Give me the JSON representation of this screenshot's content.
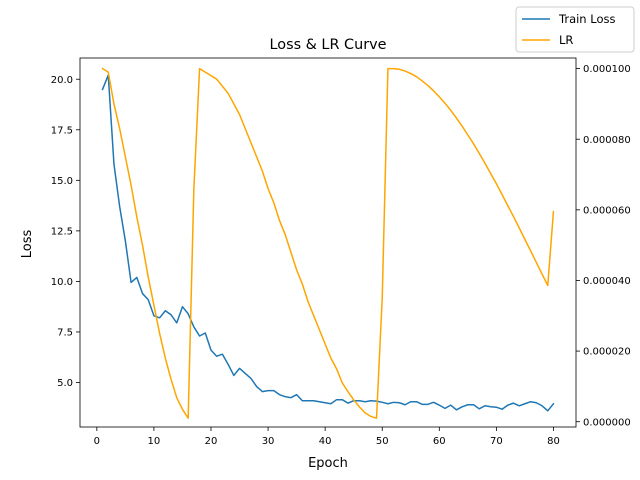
{
  "chart_data": {
    "type": "line",
    "title": "Loss & LR Curve",
    "xlabel": "Epoch",
    "ylabel": "Loss",
    "y2label": "",
    "xlim": [
      -2.95,
      83.95
    ],
    "ylim": [
      2.8,
      21.05
    ],
    "y2lim": [
      -1.5e-06,
      0.000103
    ],
    "x_ticks": [
      0,
      10,
      20,
      30,
      40,
      50,
      60,
      70,
      80
    ],
    "y_ticks": [
      5.0,
      7.5,
      10.0,
      12.5,
      15.0,
      17.5,
      20.0
    ],
    "y_tick_labels": [
      "5.0",
      "7.5",
      "10.0",
      "12.5",
      "15.0",
      "17.5",
      "20.0"
    ],
    "y2_ticks": [
      0.0,
      2e-05,
      4e-05,
      6e-05,
      8e-05,
      0.0001
    ],
    "y2_tick_labels": [
      "0.000000",
      "0.000020",
      "0.000040",
      "0.000060",
      "0.000080",
      "0.000100"
    ],
    "legend_position": "top-right",
    "grid": false,
    "x": [
      1,
      2,
      3,
      4,
      5,
      6,
      7,
      8,
      9,
      10,
      11,
      12,
      13,
      14,
      15,
      16,
      17,
      18,
      19,
      20,
      21,
      22,
      23,
      24,
      25,
      26,
      27,
      28,
      29,
      30,
      31,
      32,
      33,
      34,
      35,
      36,
      37,
      38,
      39,
      40,
      41,
      42,
      43,
      44,
      45,
      46,
      47,
      48,
      49,
      50,
      51,
      52,
      53,
      54,
      55,
      56,
      57,
      58,
      59,
      60,
      61,
      62,
      63,
      64,
      65,
      66,
      67,
      68,
      69,
      70,
      71,
      72,
      73,
      74,
      75,
      76,
      77,
      78,
      79,
      80
    ],
    "series": [
      {
        "name": "Train Loss",
        "axis": "left",
        "color": "#1f77b4",
        "values": [
          19.5,
          20.2,
          15.8,
          13.7,
          12.0,
          9.95,
          10.2,
          9.4,
          9.1,
          8.3,
          8.2,
          8.55,
          8.35,
          7.95,
          8.75,
          8.4,
          7.75,
          7.3,
          7.45,
          6.6,
          6.3,
          6.4,
          5.9,
          5.35,
          5.7,
          5.45,
          5.2,
          4.8,
          4.55,
          4.6,
          4.6,
          4.4,
          4.3,
          4.25,
          4.4,
          4.1,
          4.1,
          4.1,
          4.05,
          4.0,
          3.95,
          4.15,
          4.15,
          3.98,
          4.1,
          4.1,
          4.05,
          4.1,
          4.08,
          4.02,
          3.95,
          4.02,
          4.0,
          3.9,
          4.05,
          4.05,
          3.92,
          3.92,
          4.02,
          3.88,
          3.72,
          3.88,
          3.65,
          3.8,
          3.9,
          3.9,
          3.7,
          3.85,
          3.8,
          3.78,
          3.68,
          3.88,
          3.98,
          3.85,
          3.95,
          4.05,
          4.0,
          3.85,
          3.6,
          3.95
        ]
      },
      {
        "name": "LR",
        "axis": "right",
        "color": "#ffa500",
        "values": [
          0.0001,
          9.9e-05,
          9e-05,
          8.3e-05,
          7.5e-05,
          6.7e-05,
          5.8e-05,
          5e-05,
          4.1e-05,
          3.3e-05,
          2.5e-05,
          1.8e-05,
          1.2e-05,
          6.8e-06,
          3.5e-06,
          1e-06,
          6.6e-05,
          0.0001,
          9.9e-05,
          9.8e-05,
          9.7e-05,
          9.5e-05,
          9.3e-05,
          9e-05,
          8.7e-05,
          8.3e-05,
          7.9e-05,
          7.5e-05,
          7.1e-05,
          6.6e-05,
          6.2e-05,
          5.7e-05,
          5.3e-05,
          4.8e-05,
          4.3e-05,
          3.9e-05,
          3.4e-05,
          3e-05,
          2.6e-05,
          2.2e-05,
          1.8e-05,
          1.5e-05,
          1.1e-05,
          8.5e-06,
          6.2e-06,
          4.2e-06,
          2.5e-06,
          1.5e-06,
          1e-06,
          3.5e-05,
          0.0001,
          0.0001,
          9.98e-05,
          9.93e-05,
          9.86e-05,
          9.77e-05,
          9.65e-05,
          9.52e-05,
          9.37e-05,
          9.2e-05,
          9.02e-05,
          8.82e-05,
          8.6e-05,
          8.37e-05,
          8.12e-05,
          7.87e-05,
          7.6e-05,
          7.32e-05,
          7.03e-05,
          6.74e-05,
          6.43e-05,
          6.12e-05,
          5.81e-05,
          5.49e-05,
          5.16e-05,
          4.84e-05,
          4.51e-05,
          4.18e-05,
          3.86e-05,
          5.95e-05
        ]
      }
    ]
  }
}
